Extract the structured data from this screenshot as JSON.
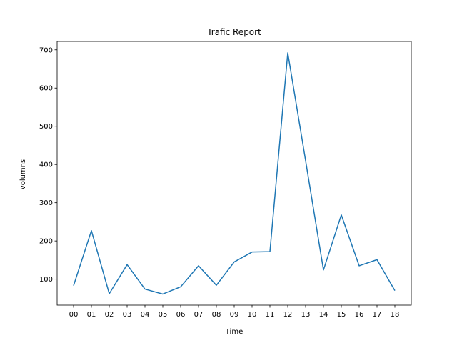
{
  "chart_data": {
    "type": "line",
    "title": "Trafic Report",
    "xlabel": "Time",
    "ylabel": "volumns",
    "categories": [
      "00",
      "01",
      "02",
      "03",
      "04",
      "05",
      "06",
      "07",
      "08",
      "09",
      "10",
      "11",
      "12",
      "13",
      "14",
      "15",
      "16",
      "17",
      "18"
    ],
    "series": [
      {
        "color": "#1f77b4",
        "values": [
          83,
          227,
          62,
          138,
          74,
          61,
          80,
          135,
          84,
          145,
          171,
          172,
          692,
          410,
          124,
          268,
          135,
          151,
          70
        ]
      }
    ],
    "yticks": [
      100,
      200,
      300,
      400,
      500,
      600,
      700
    ],
    "ylim": [
      32,
      722
    ],
    "grid": false,
    "legend": "none"
  }
}
